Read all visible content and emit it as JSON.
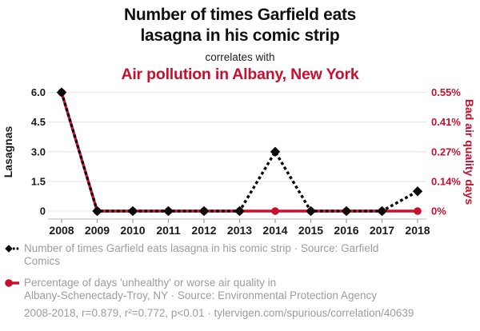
{
  "header": {
    "title_line1": "Number of times Garfield eats",
    "title_line2": "lasagna in his comic strip",
    "connector": "correlates with",
    "subtitle": "Air pollution in Albany, New York"
  },
  "colors": {
    "accent_red": "#c8102e",
    "series_black": "#0a0a0a",
    "gridline": "#e9e9e9",
    "axis_line": "#c8c8c8",
    "muted_text": "#9c9c9c"
  },
  "chart_data": {
    "type": "line",
    "x": [
      2008,
      2009,
      2010,
      2011,
      2012,
      2013,
      2014,
      2015,
      2016,
      2017,
      2018
    ],
    "series": [
      {
        "name": "Number of times Garfield eats lasagna in his comic strip",
        "axis": "left",
        "color": "#c8102e",
        "line_style": "solid-under-dash-note",
        "marker": "none",
        "values": []
      },
      {
        "name": "Percentage of days 'unhealthy' or worse air quality in Albany-Schenectady-Troy, NY",
        "axis": "right",
        "color": "#c8102e",
        "line_style": "solid",
        "marker": "circle",
        "values": [
          0.55,
          0,
          0,
          0,
          0,
          0,
          0,
          0,
          0,
          0,
          0
        ]
      },
      {
        "name": "Number of times Garfield eats lasagna in his comic strip",
        "axis": "left",
        "color": "#0a0a0a",
        "line_style": "dashed",
        "marker": "diamond",
        "values": [
          6,
          0,
          0,
          0,
          0,
          0,
          3,
          0,
          0,
          0,
          1
        ]
      }
    ],
    "left_axis": {
      "label": "Lasagnas",
      "tick_labels": [
        "0",
        "1.5",
        "3.0",
        "4.5",
        "6.0"
      ],
      "tick_values": [
        0,
        1.5,
        3,
        4.5,
        6
      ],
      "range": [
        0,
        6
      ]
    },
    "right_axis": {
      "label": "Bad air quality days",
      "tick_labels": [
        "0%",
        "0.14%",
        "0.27%",
        "0.41%",
        "0.55%"
      ],
      "tick_values": [
        0,
        0.1375,
        0.275,
        0.4125,
        0.55
      ],
      "range": [
        0,
        0.55
      ]
    },
    "grid": true,
    "legend_position": "bottom"
  },
  "legend": {
    "rows": [
      {
        "marker": "black-diamond-dashed-line",
        "lines": [
          "Number of times Garfield eats lasagna in his comic strip · Source: Garfield",
          "Comics"
        ]
      },
      {
        "marker": "red-circle-solid-line",
        "lines": [
          "Percentage of days 'unhealthy' or worse air quality in",
          "Albany-Schenectady-Troy, NY · Source: Environmental Protection Agency"
        ]
      }
    ]
  },
  "footer": {
    "stats": "2008-2018, r=0.879, r²=0.772, p<0.01 · tylervigen.com/spurious/correlation/40639"
  }
}
